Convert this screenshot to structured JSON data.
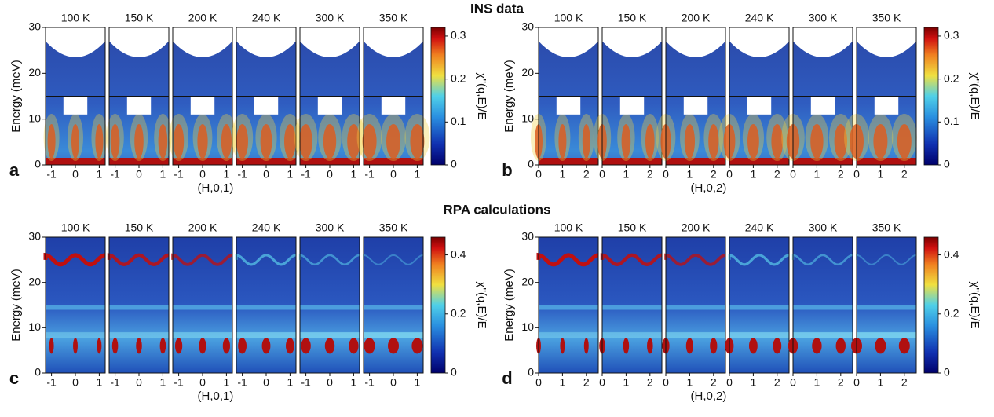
{
  "sections": [
    {
      "title": "INS data"
    },
    {
      "title": "RPA calculations"
    }
  ],
  "panels": [
    {
      "label": "a",
      "kind": "INS",
      "temperatures": [
        "100 K",
        "150 K",
        "200 K",
        "240 K",
        "300 K",
        "350 K"
      ],
      "ylabel": "Energy (meV)",
      "xlabel": "(H,0,1)",
      "ylim": [
        0,
        30
      ],
      "yticks": [
        0,
        10,
        20,
        30
      ],
      "xlim": [
        -1.25,
        1.25
      ],
      "xticks": [
        -1,
        0,
        1
      ],
      "colorbar": {
        "label": "χ''(q,E)/E",
        "lim": [
          0,
          0.32
        ],
        "ticks": [
          0,
          0.1,
          0.2,
          0.3
        ]
      }
    },
    {
      "label": "b",
      "kind": "INS",
      "temperatures": [
        "100 K",
        "150 K",
        "200 K",
        "240 K",
        "300 K",
        "350 K"
      ],
      "ylabel": "Energy (meV)",
      "xlabel": "(H,0,2)",
      "ylim": [
        0,
        30
      ],
      "yticks": [
        0,
        10,
        20,
        30
      ],
      "xlim": [
        0,
        2.5
      ],
      "xticks": [
        0,
        1,
        2
      ],
      "colorbar": {
        "label": "χ''(q,E)/E",
        "lim": [
          0,
          0.32
        ],
        "ticks": [
          0,
          0.1,
          0.2,
          0.3
        ]
      }
    },
    {
      "label": "c",
      "kind": "RPA",
      "temperatures": [
        "100 K",
        "150 K",
        "200 K",
        "240 K",
        "300 K",
        "350 K"
      ],
      "ylabel": "Energy (meV)",
      "xlabel": "(H,0,1)",
      "ylim": [
        0,
        30
      ],
      "yticks": [
        0,
        10,
        20,
        30
      ],
      "xlim": [
        -1.25,
        1.25
      ],
      "xticks": [
        -1,
        0,
        1
      ],
      "colorbar": {
        "label": "χ''(q,E)/E",
        "lim": [
          0,
          0.46
        ],
        "ticks": [
          0,
          0.2,
          0.4
        ]
      }
    },
    {
      "label": "d",
      "kind": "RPA",
      "temperatures": [
        "100 K",
        "150 K",
        "200 K",
        "240 K",
        "300 K",
        "350 K"
      ],
      "ylabel": "Energy (meV)",
      "xlabel": "(H,0,2)",
      "ylim": [
        0,
        30
      ],
      "yticks": [
        0,
        10,
        20,
        30
      ],
      "xlim": [
        0,
        2.5
      ],
      "xticks": [
        0,
        1,
        2
      ],
      "colorbar": {
        "label": "χ''(q,E)/E",
        "lim": [
          0,
          0.46
        ],
        "ticks": [
          0,
          0.2,
          0.4
        ]
      }
    }
  ]
}
